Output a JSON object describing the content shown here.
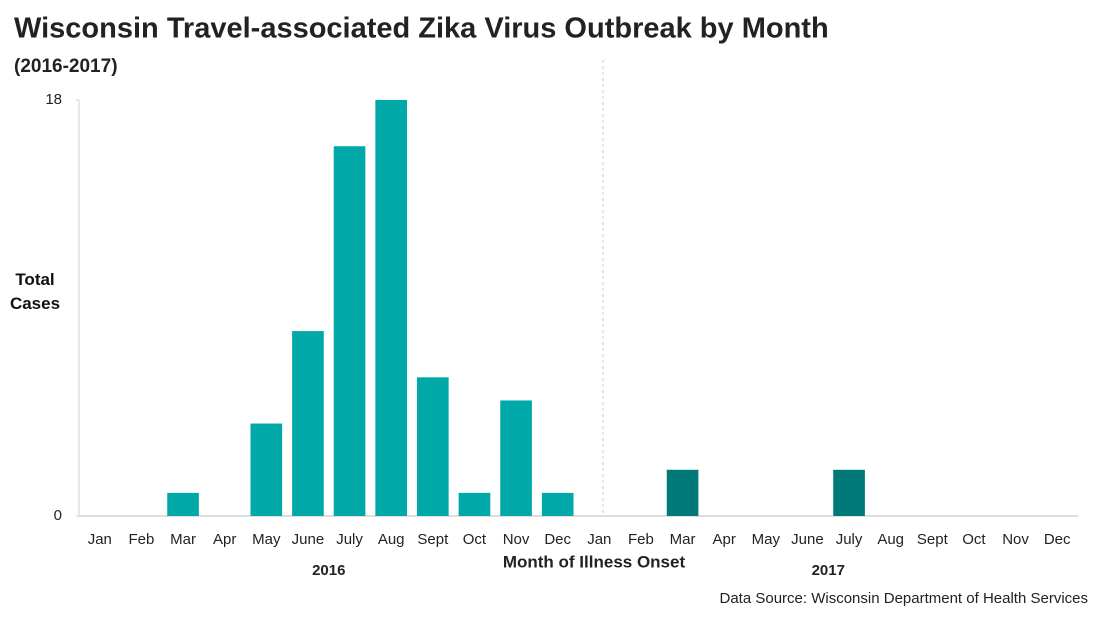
{
  "chart_data": {
    "type": "bar",
    "title": "Wisconsin Travel-associated Zika Virus Outbreak by Month",
    "subtitle": "(2016-2017)",
    "y_label": "Total Cases",
    "x_label": "Month of Illness Onset",
    "source": "Data Source: Wisconsin Department of Health Services",
    "categories": [
      "Jan",
      "Feb",
      "Mar",
      "Apr",
      "May",
      "June",
      "July",
      "Aug",
      "Sept",
      "Oct",
      "Nov",
      "Dec",
      "Jan",
      "Feb",
      "Mar",
      "Apr",
      "May",
      "June",
      "July",
      "Aug",
      "Sept",
      "Oct",
      "Nov",
      "Dec"
    ],
    "series": [
      {
        "name": "2016",
        "color": "#00a8a8",
        "values": [
          0,
          0,
          1,
          0,
          4,
          8,
          16,
          18,
          6,
          1,
          5,
          1,
          null,
          null,
          null,
          null,
          null,
          null,
          null,
          null,
          null,
          null,
          null,
          null
        ]
      },
      {
        "name": "2017",
        "color": "#007a78",
        "values": [
          null,
          null,
          null,
          null,
          null,
          null,
          null,
          null,
          null,
          null,
          null,
          null,
          0,
          0,
          2,
          0,
          0,
          0,
          2,
          0,
          0,
          0,
          0,
          0
        ]
      }
    ],
    "ylim": [
      0,
      18
    ],
    "yticks": [
      0,
      18
    ]
  }
}
